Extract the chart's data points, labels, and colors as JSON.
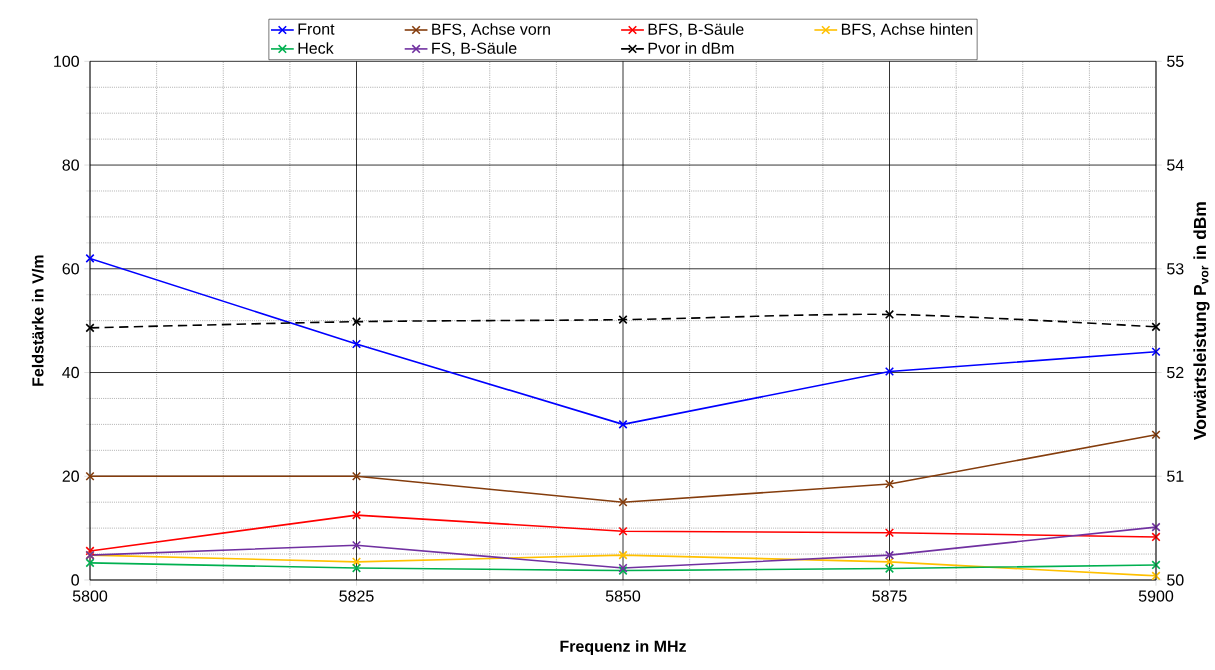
{
  "chart_data": {
    "type": "line",
    "xlabel": "Frequenz in MHz",
    "ylabel": "Feldstärke in V/m",
    "y2label": "Vorwärtsleistung P$_{vor}$ in dBm",
    "x": [
      5800,
      5825,
      5850,
      5875,
      5900
    ],
    "xlim": [
      5800,
      5900
    ],
    "xticks": [
      5800,
      5825,
      5850,
      5875,
      5900
    ],
    "ylim": [
      0,
      100
    ],
    "yticks": [
      0,
      20,
      40,
      60,
      80,
      100
    ],
    "y2lim": [
      50,
      55
    ],
    "y2ticks": [
      50,
      51,
      52,
      53,
      54,
      55
    ],
    "grid": true,
    "legend": "top",
    "marker": "cross",
    "line_style": "solid",
    "series": [
      {
        "name": "Front",
        "color": "#0000ff",
        "values": [
          62,
          45.5,
          30,
          40.2,
          44
        ]
      },
      {
        "name": "BFS, Achse vorn",
        "color": "#843c0c",
        "values": [
          20,
          20,
          15,
          18.5,
          28
        ]
      },
      {
        "name": "BFS, B-Säule",
        "color": "#ff0000",
        "values": [
          5.6,
          12.5,
          9.4,
          9.1,
          8.3
        ]
      },
      {
        "name": "BFS, Achse hinten",
        "color": "#ffc000",
        "values": [
          4.8,
          3.5,
          4.8,
          3.5,
          0.8
        ]
      },
      {
        "name": "Heck",
        "color": "#00b050",
        "values": [
          3.3,
          2.3,
          1.8,
          2.2,
          2.9
        ]
      },
      {
        "name": "FS, B-Säule",
        "color": "#7030a0",
        "values": [
          4.8,
          6.7,
          2.3,
          4.8,
          10.2
        ]
      },
      {
        "name": "Pvor in dBm",
        "color": "#000000",
        "axis": "y2",
        "line_style": "dashed",
        "values": [
          52.43,
          52.49,
          52.51,
          52.56,
          52.44
        ]
      }
    ]
  }
}
